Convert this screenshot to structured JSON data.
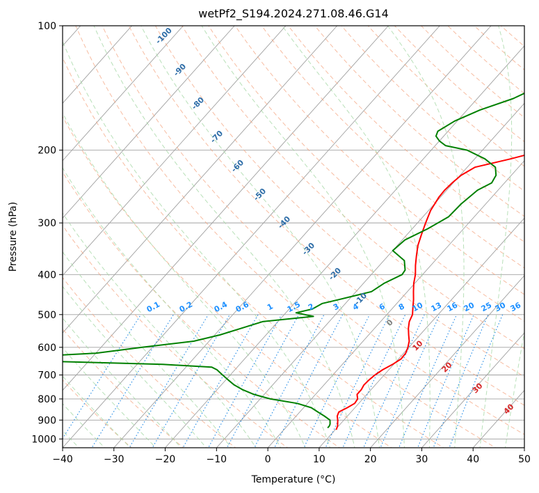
{
  "chart_data": {
    "type": "skew-t",
    "title": "wetPf2_S194.2024.271.08.46.G14",
    "xlabel": "Temperature (°C)",
    "ylabel": "Pressure (hPa)",
    "xlim": [
      -40,
      50
    ],
    "ylim": [
      1050,
      100
    ],
    "y_scale": "log",
    "grid": true,
    "x_ticks": [
      -40,
      -30,
      -20,
      -10,
      0,
      10,
      20,
      30,
      40,
      50
    ],
    "y_ticks": [
      1000,
      900,
      800,
      700,
      600,
      500,
      400,
      300,
      200,
      100
    ],
    "colors": {
      "temperature": "#ff0000",
      "dewpoint": "#008000",
      "isotherm": "#a0a0a0",
      "dry_adiabat": "#f4a582",
      "moist_adiabat": "#a6d8a6",
      "isohume": "#1e88e5",
      "isohume_label": "#1e90ff",
      "adiabat_label": "#2f6ea8",
      "moist_label": "#d62728"
    },
    "series": [
      {
        "key": "temperature",
        "pressure": [
          950,
          930,
          900,
          880,
          860,
          840,
          820,
          800,
          780,
          760,
          740,
          720,
          700,
          680,
          660,
          640,
          620,
          600,
          580,
          560,
          540,
          520,
          500,
          480,
          460,
          440,
          420,
          400,
          380,
          360,
          340,
          320,
          300,
          280,
          260,
          250,
          240,
          230,
          220,
          210,
          200,
          190,
          180,
          170,
          160,
          150,
          140,
          130,
          120,
          110,
          100
        ],
        "values": [
          10.2,
          9.8,
          8.8,
          8.0,
          7.6,
          8.5,
          9.2,
          9.0,
          8.1,
          8.1,
          7.8,
          7.9,
          8.2,
          8.8,
          9.8,
          10.5,
          10.4,
          9.8,
          9.0,
          7.8,
          6.6,
          5.6,
          5.0,
          3.8,
          2.6,
          1.2,
          -0.2,
          -1.4,
          -3.0,
          -4.5,
          -6.0,
          -7.2,
          -8.4,
          -9.6,
          -10.3,
          -10.4,
          -10.2,
          -9.8,
          -8.5,
          -3.0,
          2.0,
          6.0,
          9.5,
          13.0,
          16.0,
          19.5,
          22.5,
          25.5,
          28.5,
          31.5,
          35.0
        ]
      },
      {
        "key": "dewpoint",
        "pressure": [
          940,
          930,
          920,
          900,
          880,
          860,
          840,
          820,
          800,
          780,
          760,
          740,
          720,
          700,
          680,
          670,
          660,
          650,
          640,
          635,
          630,
          625,
          620,
          600,
          580,
          560,
          540,
          520,
          505,
          495,
          485,
          470,
          460,
          440,
          420,
          400,
          390,
          370,
          350,
          330,
          310,
          290,
          270,
          250,
          240,
          230,
          220,
          210,
          200,
          195,
          190,
          185,
          180,
          170,
          160,
          150,
          140,
          130,
          120,
          110,
          100
        ],
        "values": [
          8.2,
          8.2,
          8.0,
          7.3,
          5.5,
          3.5,
          1.5,
          -2.0,
          -8.0,
          -12.0,
          -15.0,
          -17.5,
          -19.5,
          -21.5,
          -23.5,
          -25.0,
          -35.0,
          -55.0,
          -90.0,
          -80.0,
          -60.0,
          -55.0,
          -50.0,
          -42.0,
          -33.0,
          -29.0,
          -26.0,
          -23.0,
          -14.0,
          -18.0,
          -15.5,
          -14.5,
          -12.0,
          -7.0,
          -6.0,
          -4.0,
          -4.2,
          -6.0,
          -10.0,
          -9.5,
          -7.0,
          -5.0,
          -4.8,
          -4.0,
          -2.5,
          -3.0,
          -4.5,
          -8.0,
          -13.0,
          -18.0,
          -20.0,
          -21.5,
          -22.0,
          -20.5,
          -17.5,
          -13.0,
          -10.0,
          -7.0,
          -2.0,
          4.5,
          12.0
        ]
      }
    ],
    "dry_adiabat_labels": [
      "-100",
      "-90",
      "-80",
      "-70",
      "-60",
      "-50",
      "-40",
      "-30",
      "-20",
      "-10"
    ],
    "isohume_labels": [
      "0.1",
      "0.2",
      "0.4",
      "0.6",
      "1",
      "1.5",
      "2",
      "3",
      "4",
      "6",
      "8",
      "10",
      "13",
      "16",
      "20",
      "25",
      "30",
      "36"
    ],
    "moist_adiabat_labels": [
      "0",
      "10",
      "20",
      "30",
      "40"
    ]
  }
}
